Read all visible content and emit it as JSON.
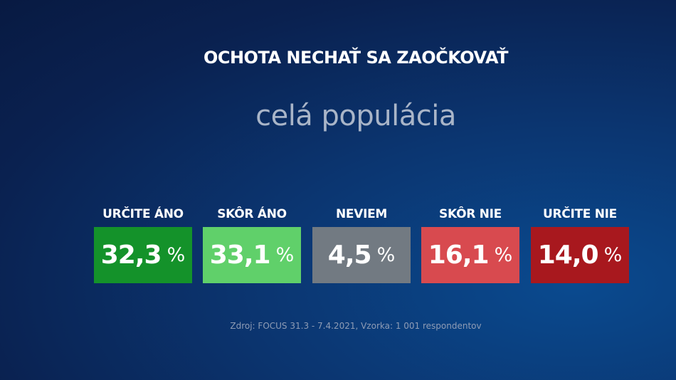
{
  "header": {
    "title": "OCHOTA NECHAŤ SA ZAOČKOVAŤ",
    "subtitle": "celá populácia"
  },
  "unit": "%",
  "chart_data": {
    "type": "table",
    "title": "OCHOTA NECHAŤ SA ZAOČKOVAŤ",
    "subtitle": "celá populácia",
    "categories": [
      "URČITE ÁNO",
      "SKÔR ÁNO",
      "NEVIEM",
      "SKÔR NIE",
      "URČITE NIE"
    ],
    "values": [
      32.3,
      33.1,
      4.5,
      16.1,
      14.0
    ],
    "display_values": [
      "32,3",
      "33,1",
      "4,5",
      "16,1",
      "14,0"
    ],
    "colors": [
      "#14922a",
      "#60d06a",
      "#727a82",
      "#d84a4f",
      "#a8181e"
    ]
  },
  "footer": {
    "source": "Zdroj: FOCUS 31.3 - 7.4.2021, Vzorka: 1 001 respondentov"
  }
}
